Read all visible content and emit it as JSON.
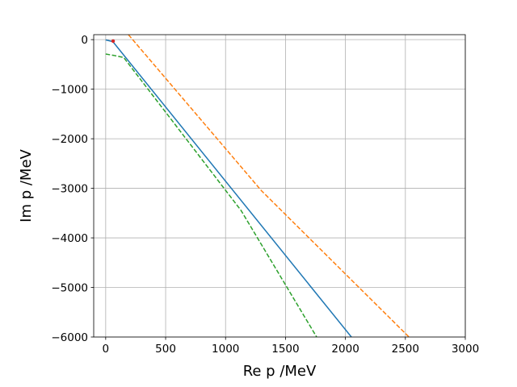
{
  "chart_data": {
    "type": "line",
    "title": "",
    "xlabel": "Re p /MeV",
    "ylabel": "Im p /MeV",
    "xlim": [
      -100,
      3000
    ],
    "ylim": [
      -6000,
      100
    ],
    "xticks": [
      0,
      500,
      1000,
      1500,
      2000,
      2500,
      3000
    ],
    "xtick_labels": [
      "0",
      "500",
      "1000",
      "1500",
      "2000",
      "2500",
      "3000"
    ],
    "yticks": [
      0,
      -1000,
      -2000,
      -3000,
      -4000,
      -5000,
      -6000
    ],
    "ytick_labels": [
      "0",
      "−1000",
      "−2000",
      "−3000",
      "−4000",
      "−5000",
      "−6000"
    ],
    "grid": true,
    "series": [
      {
        "color": "#1f77b4",
        "style": "solid",
        "x": [
          0,
          60,
          2050
        ],
        "y": [
          -5,
          -40,
          -6000
        ]
      },
      {
        "color": "#ff7f0e",
        "style": "dashed",
        "x": [
          190,
          1300,
          2530
        ],
        "y": [
          100,
          -3050,
          -6000
        ]
      },
      {
        "color": "#2ca02c",
        "style": "dashed",
        "x": [
          0,
          70,
          150,
          1130,
          1760
        ],
        "y": [
          -290,
          -320,
          -360,
          -3450,
          -6000
        ]
      }
    ],
    "points": [
      {
        "x": 62,
        "y": -30,
        "color": "#d62728"
      }
    ]
  }
}
